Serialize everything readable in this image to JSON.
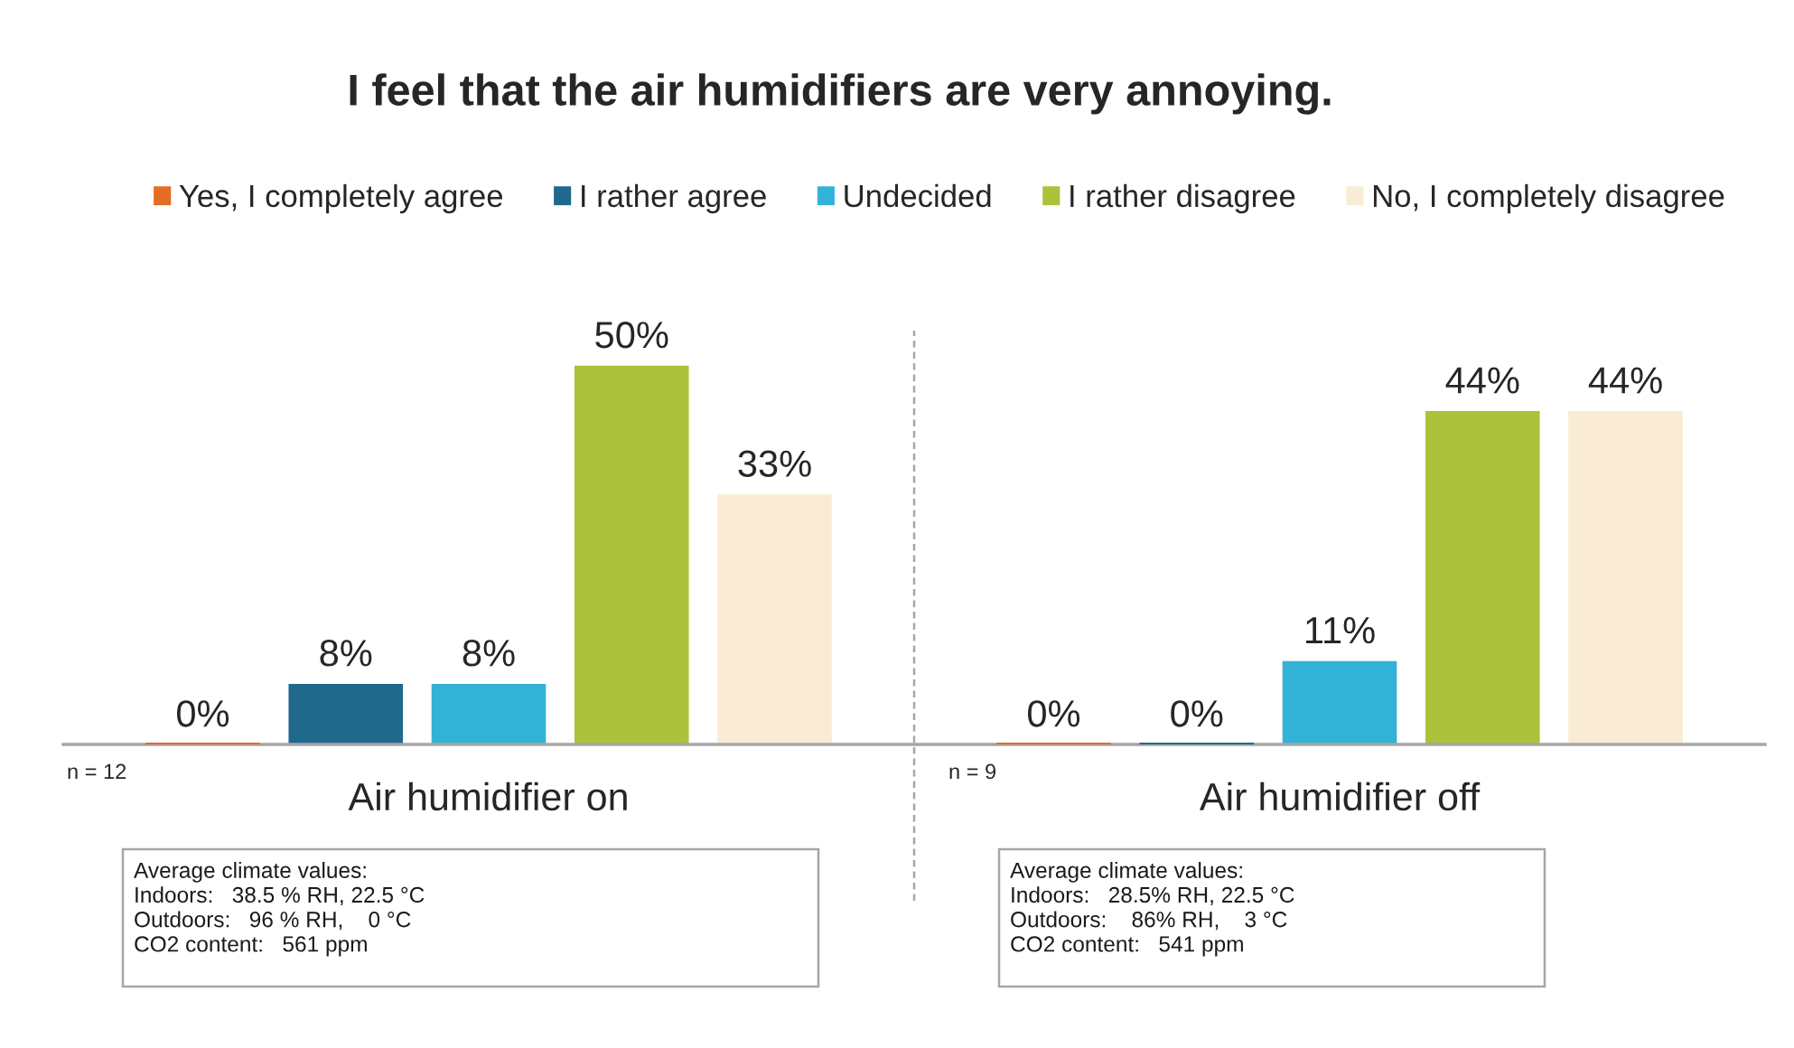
{
  "chart_data": {
    "type": "bar",
    "title": "I feel that the air humidifiers are very annoying.",
    "categories": [
      "Air humidifier on",
      "Air humidifier off"
    ],
    "series": [
      {
        "name": "Yes, I completely agree",
        "color": "#e46c24",
        "values": [
          0,
          0
        ],
        "value_labels": [
          "0%",
          "0%"
        ]
      },
      {
        "name": "I rather agree",
        "color": "#20698d",
        "values": [
          8,
          0
        ],
        "value_labels": [
          "8%",
          "0%"
        ]
      },
      {
        "name": "Undecided",
        "color": "#33b2d8",
        "values": [
          8,
          11
        ],
        "value_labels": [
          "8%",
          "11%"
        ]
      },
      {
        "name": "I rather disagree",
        "color": "#abc23a",
        "values": [
          50,
          44
        ],
        "value_labels": [
          "50%",
          "44%"
        ]
      },
      {
        "name": "No, I completely disagree",
        "color": "#faebd5",
        "values": [
          33,
          44
        ],
        "value_labels": [
          "33%",
          "44%"
        ]
      }
    ],
    "legend": "top",
    "tick_labels": "x",
    "annotations": [
      "n = 12",
      "Average climate values:\nIndoors:   38.5 % RH, 22.5 °C\nOutdoors:   96 % RH,    0 °C\nCO2 content:   561 ppm",
      "n = 9",
      "Average climate values:\nIndoors:   28.5% RH, 22.5 °C\nOutdoors:    86% RH,    3 °C\nCO2 content:   541 ppm"
    ]
  }
}
